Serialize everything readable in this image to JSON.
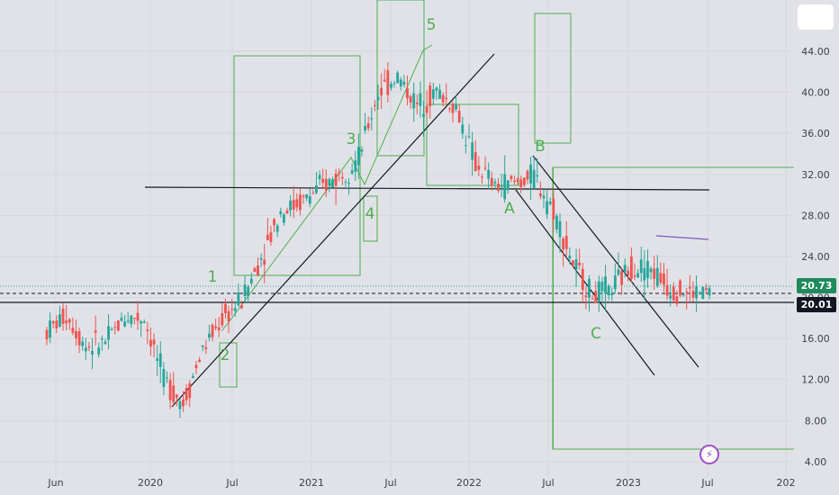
{
  "header": {
    "menu_button_label": ""
  },
  "badges": {
    "last_price": "20.73",
    "ref_price": "20.01"
  },
  "flash_label": "⚡",
  "colors": {
    "up": "#26a69a",
    "down": "#ef5350",
    "green": "#4caf50",
    "trend": "#131722",
    "purple": "#7e57c2"
  },
  "chart_data": {
    "type": "candlestick",
    "x_ticks": [
      "Jun",
      "2020",
      "Jul",
      "2021",
      "Jul",
      "2022",
      "Jul",
      "2023",
      "Jul",
      "202"
    ],
    "y_ticks": [
      "44.00",
      "40.00",
      "36.00",
      "32.00",
      "28.00",
      "24.00",
      "20.00",
      "16.00",
      "12.00",
      "8.00",
      "4.00"
    ],
    "y_range": [
      2.5,
      49
    ],
    "wave_labels": [
      "1",
      "2",
      "3",
      "4",
      "5",
      "A",
      "B",
      "C"
    ],
    "horizontal_levels": [
      20.73,
      20.01
    ],
    "ohlc_anchors": [
      [
        14.8,
        18.6,
        14.2,
        20.0
      ],
      [
        19.2,
        17.4,
        16.0,
        20.0
      ],
      [
        16.2,
        14.4,
        13.3,
        16.8
      ],
      [
        14.2,
        17.0,
        13.8,
        17.6
      ],
      [
        17.0,
        19.2,
        16.8,
        20.2
      ],
      [
        19.0,
        17.0,
        16.2,
        19.8
      ],
      [
        17.0,
        7.2,
        6.8,
        17.4
      ],
      [
        7.6,
        11.8,
        7.2,
        12.2
      ],
      [
        11.8,
        18.0,
        11.0,
        19.2
      ],
      [
        18.0,
        17.8,
        16.6,
        19.8
      ],
      [
        17.8,
        21.6,
        17.0,
        22.6
      ],
      [
        21.6,
        26.2,
        21.0,
        27.2
      ],
      [
        26.2,
        30.6,
        25.4,
        31.4
      ],
      [
        30.6,
        28.0,
        26.8,
        31.2
      ],
      [
        28.0,
        33.2,
        27.0,
        33.8
      ],
      [
        33.2,
        30.6,
        29.8,
        33.8
      ],
      [
        30.6,
        36.4,
        30.2,
        37.0
      ],
      [
        36.4,
        43.6,
        35.6,
        44.4
      ],
      [
        43.6,
        39.6,
        38.2,
        44.0
      ],
      [
        39.6,
        37.8,
        36.6,
        40.8
      ],
      [
        37.8,
        42.4,
        37.0,
        42.8
      ],
      [
        42.4,
        34.6,
        34.0,
        42.6
      ],
      [
        34.6,
        31.6,
        30.2,
        35.0
      ],
      [
        31.6,
        30.0,
        29.2,
        33.8
      ],
      [
        30.0,
        32.4,
        29.4,
        33.2
      ],
      [
        32.4,
        31.2,
        30.8,
        33.0
      ],
      [
        31.2,
        26.0,
        24.6,
        31.6
      ],
      [
        26.0,
        20.6,
        19.4,
        26.4
      ],
      [
        20.6,
        19.8,
        18.2,
        21.2
      ],
      [
        19.8,
        21.8,
        19.2,
        22.6
      ],
      [
        21.8,
        24.4,
        21.2,
        25.2
      ],
      [
        24.4,
        21.2,
        20.4,
        24.8
      ],
      [
        21.2,
        20.6,
        19.0,
        21.8
      ],
      [
        20.6,
        20.2,
        19.6,
        21.2
      ],
      [
        20.2,
        20.9,
        19.8,
        21.2
      ]
    ]
  }
}
